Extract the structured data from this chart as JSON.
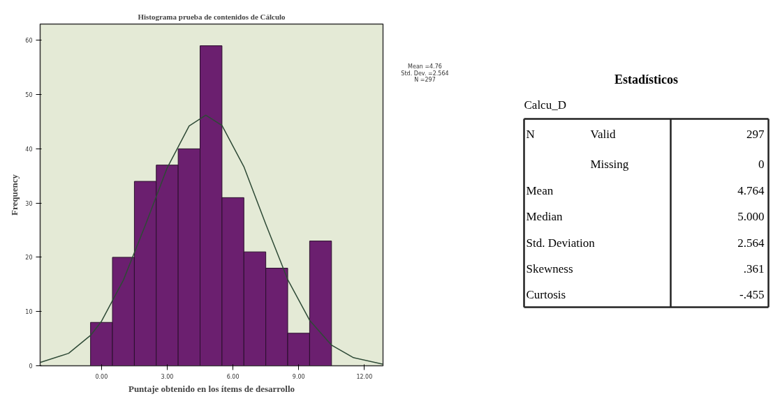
{
  "chart_data": [
    {
      "type": "histogram",
      "title": "Histograma prueba de contenidos de Cálculo",
      "xlabel": "Puntaje obtenido en los ítems de desarrollo",
      "ylabel": "Frequency",
      "bins": [
        -0.5,
        0.5,
        1.5,
        2.5,
        3.5,
        4.5,
        5.5,
        6.5,
        7.5,
        8.5,
        9.5,
        10.5
      ],
      "values": [
        8,
        20,
        34,
        37,
        40,
        59,
        31,
        21,
        18,
        6,
        23
      ],
      "color": "#6b1f6f",
      "series": [
        {
          "type": "line",
          "color": "#2e4a36",
          "x": [
            -2.8,
            -1.5,
            -0.5,
            0,
            1,
            2,
            3,
            4,
            4.76,
            5.5,
            6.5,
            7.5,
            8.5,
            9.5,
            10.5,
            11.5,
            12.85
          ],
          "values": [
            0.6,
            2.3,
            5.6,
            8.2,
            15.8,
            25.9,
            36.5,
            44.2,
            46.2,
            44.3,
            36.7,
            26.1,
            15.9,
            8.4,
            3.8,
            1.5,
            0.3
          ]
        }
      ],
      "xlim": [
        -2.8,
        12.85
      ],
      "xticks": [
        {
          "value": 0,
          "label": "0.00"
        },
        {
          "value": 3,
          "label": "3.00"
        },
        {
          "value": 6,
          "label": "6.00"
        },
        {
          "value": 9,
          "label": "9.00"
        },
        {
          "value": 12,
          "label": "12.00"
        }
      ],
      "ylim": [
        0,
        63
      ],
      "yticks": [
        0,
        10,
        20,
        30,
        40,
        50,
        60
      ],
      "annotations": [
        "Mean =4.76",
        "Std. Dev. =2.564",
        "N =297"
      ]
    },
    {
      "type": "other",
      "title": "Estadísticos",
      "subtitle": "Calcu_D",
      "annotations": [
        "N",
        "Valid",
        "297",
        "Missing",
        "0",
        "Mean",
        "4.764",
        "Median",
        "5.000",
        "Std. Deviation",
        "2.564",
        "Skewness",
        ".361",
        "Curtosis",
        "-.455"
      ]
    }
  ]
}
